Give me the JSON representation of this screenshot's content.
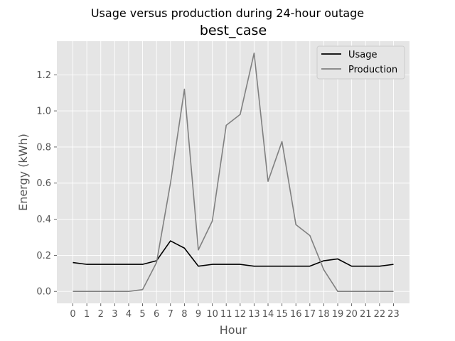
{
  "suptitle": "Usage versus production during 24-hour outage",
  "chart_data": {
    "type": "line",
    "title": "best_case",
    "xlabel": "Hour",
    "ylabel": "Energy (kWh)",
    "x": [
      0,
      1,
      2,
      3,
      4,
      5,
      6,
      7,
      8,
      9,
      10,
      11,
      12,
      13,
      14,
      15,
      16,
      17,
      18,
      19,
      20,
      21,
      22,
      23
    ],
    "xticks": [
      "0",
      "1",
      "2",
      "3",
      "4",
      "5",
      "6",
      "7",
      "8",
      "9",
      "10",
      "11",
      "12",
      "13",
      "14",
      "15",
      "16",
      "17",
      "18",
      "19",
      "20",
      "21",
      "22",
      "23"
    ],
    "yticks": [
      "0.0",
      "0.2",
      "0.4",
      "0.6",
      "0.8",
      "1.0",
      "1.2"
    ],
    "ylim": [
      -0.066,
      1.386
    ],
    "xlim": [
      -1.15,
      24.15
    ],
    "grid": true,
    "legend_position": "top-right",
    "series": [
      {
        "name": "Usage",
        "color": "#000000",
        "values": [
          0.16,
          0.15,
          0.15,
          0.15,
          0.15,
          0.15,
          0.17,
          0.28,
          0.24,
          0.14,
          0.15,
          0.15,
          0.15,
          0.14,
          0.14,
          0.14,
          0.14,
          0.14,
          0.17,
          0.18,
          0.14,
          0.14,
          0.14,
          0.15
        ]
      },
      {
        "name": "Production",
        "color": "#808080",
        "values": [
          0.0,
          0.0,
          0.0,
          0.0,
          0.0,
          0.01,
          0.16,
          0.6,
          1.12,
          0.23,
          0.39,
          0.92,
          0.98,
          1.32,
          0.61,
          0.83,
          0.37,
          0.31,
          0.12,
          0.0,
          0.0,
          0.0,
          0.0,
          0.0
        ]
      }
    ]
  },
  "colors": {
    "plot_background": "#e5e5e5",
    "grid": "#ffffff"
  }
}
